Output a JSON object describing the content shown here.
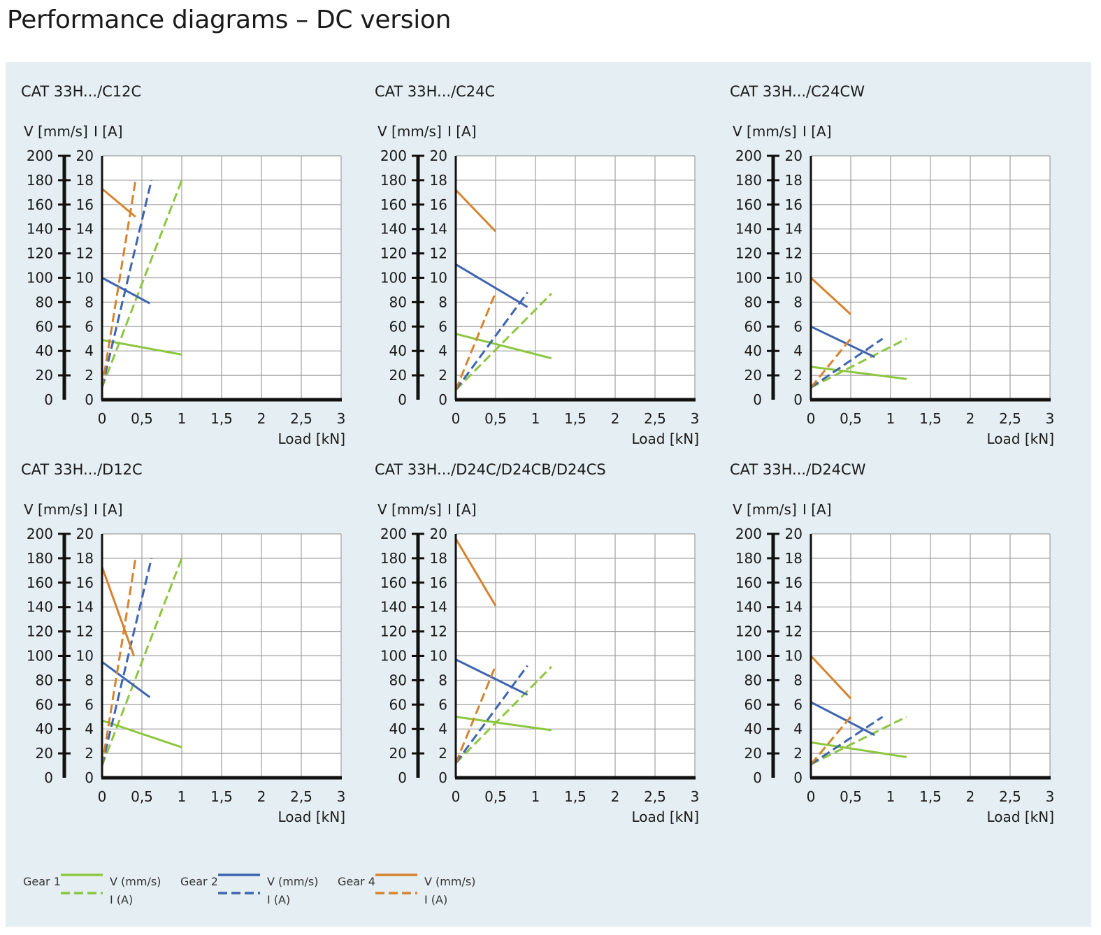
{
  "page": {
    "title": "Performance diagrams – DC version"
  },
  "colors": {
    "gear1": "#8cc63f",
    "gear2": "#3d64ae",
    "gear4": "#d6832e",
    "panel": "#e5eef2",
    "grid": "#a0a0a0",
    "axis": "#111111"
  },
  "legend": [
    {
      "gear": "Gear 1",
      "v_label": "V (mm/s)",
      "i_label": "I (A)",
      "color": "#8cc63f"
    },
    {
      "gear": "Gear 2",
      "v_label": "V (mm/s)",
      "i_label": "I (A)",
      "color": "#3d64ae"
    },
    {
      "gear": "Gear 4",
      "v_label": "V (mm/s)",
      "i_label": "I (A)",
      "color": "#d6832e"
    }
  ],
  "chart_data": [
    {
      "type": "line",
      "title": "CAT 33H.../C12C",
      "ylabel_left": "V [mm/s]",
      "ylabel_right": "I [A]",
      "xlabel": "Load [kN]",
      "xlim": [
        0,
        3
      ],
      "ylim_v": [
        0,
        200
      ],
      "ylim_i": [
        0,
        20
      ],
      "x_ticks": [
        "0",
        "0,5",
        "1",
        "1,5",
        "2",
        "2,5",
        "3"
      ],
      "y_ticks_v": [
        "0",
        "20",
        "40",
        "60",
        "80",
        "100",
        "120",
        "140",
        "160",
        "180",
        "200"
      ],
      "y_ticks_i": [
        "0",
        "2",
        "4",
        "6",
        "8",
        "10",
        "12",
        "14",
        "16",
        "18",
        "20"
      ],
      "grid": true,
      "series": [
        {
          "gear": "Gear 1",
          "quantity": "V",
          "style": "solid",
          "points": [
            [
              0,
              49
            ],
            [
              1.0,
              37
            ]
          ]
        },
        {
          "gear": "Gear 1",
          "quantity": "I",
          "style": "dashed",
          "points": [
            [
              0,
              1.0
            ],
            [
              1.0,
              18
            ]
          ]
        },
        {
          "gear": "Gear 2",
          "quantity": "V",
          "style": "solid",
          "points": [
            [
              0,
              100
            ],
            [
              0.6,
              79
            ]
          ]
        },
        {
          "gear": "Gear 2",
          "quantity": "I",
          "style": "dashed",
          "points": [
            [
              0,
              1.0
            ],
            [
              0.62,
              18
            ]
          ]
        },
        {
          "gear": "Gear 4",
          "quantity": "V",
          "style": "solid",
          "points": [
            [
              0,
              173
            ],
            [
              0.42,
              150
            ]
          ]
        },
        {
          "gear": "Gear 4",
          "quantity": "I",
          "style": "dashed",
          "points": [
            [
              0,
              1.0
            ],
            [
              0.42,
              18
            ]
          ]
        }
      ]
    },
    {
      "type": "line",
      "title": "CAT 33H.../C24C",
      "ylabel_left": "V [mm/s]",
      "ylabel_right": "I [A]",
      "xlabel": "Load [kN]",
      "xlim": [
        0,
        3
      ],
      "ylim_v": [
        0,
        200
      ],
      "ylim_i": [
        0,
        20
      ],
      "x_ticks": [
        "0",
        "0,5",
        "1",
        "1,5",
        "2",
        "2,5",
        "3"
      ],
      "y_ticks_v": [
        "0",
        "20",
        "40",
        "60",
        "80",
        "100",
        "120",
        "140",
        "160",
        "180",
        "200"
      ],
      "y_ticks_i": [
        "0",
        "2",
        "4",
        "6",
        "8",
        "10",
        "12",
        "14",
        "16",
        "18",
        "20"
      ],
      "grid": true,
      "series": [
        {
          "gear": "Gear 1",
          "quantity": "V",
          "style": "solid",
          "points": [
            [
              0,
              54
            ],
            [
              1.2,
              34
            ]
          ]
        },
        {
          "gear": "Gear 1",
          "quantity": "I",
          "style": "dashed",
          "points": [
            [
              0,
              0.8
            ],
            [
              1.2,
              8.7
            ]
          ]
        },
        {
          "gear": "Gear 2",
          "quantity": "V",
          "style": "solid",
          "points": [
            [
              0,
              111
            ],
            [
              0.9,
              76
            ]
          ]
        },
        {
          "gear": "Gear 2",
          "quantity": "I",
          "style": "dashed",
          "points": [
            [
              0,
              0.8
            ],
            [
              0.9,
              8.8
            ]
          ]
        },
        {
          "gear": "Gear 4",
          "quantity": "V",
          "style": "solid",
          "points": [
            [
              0,
              172
            ],
            [
              0.5,
              138
            ]
          ]
        },
        {
          "gear": "Gear 4",
          "quantity": "I",
          "style": "dashed",
          "points": [
            [
              0,
              0.8
            ],
            [
              0.5,
              8.8
            ]
          ]
        }
      ]
    },
    {
      "type": "line",
      "title": "CAT 33H.../C24CW",
      "ylabel_left": "V [mm/s]",
      "ylabel_right": "I [A]",
      "xlabel": "Load [kN]",
      "xlim": [
        0,
        3
      ],
      "ylim_v": [
        0,
        200
      ],
      "ylim_i": [
        0,
        20
      ],
      "x_ticks": [
        "0",
        "0,5",
        "1",
        "1,5",
        "2",
        "2,5",
        "3"
      ],
      "y_ticks_v": [
        "0",
        "20",
        "40",
        "60",
        "80",
        "100",
        "120",
        "140",
        "160",
        "180",
        "200"
      ],
      "y_ticks_i": [
        "0",
        "2",
        "4",
        "6",
        "8",
        "10",
        "12",
        "14",
        "16",
        "18",
        "20"
      ],
      "grid": true,
      "series": [
        {
          "gear": "Gear 1",
          "quantity": "V",
          "style": "solid",
          "points": [
            [
              0,
              27
            ],
            [
              1.2,
              17
            ]
          ]
        },
        {
          "gear": "Gear 1",
          "quantity": "I",
          "style": "dashed",
          "points": [
            [
              0,
              1.0
            ],
            [
              1.2,
              5.0
            ]
          ]
        },
        {
          "gear": "Gear 2",
          "quantity": "V",
          "style": "solid",
          "points": [
            [
              0,
              60
            ],
            [
              0.8,
              35
            ]
          ]
        },
        {
          "gear": "Gear 2",
          "quantity": "I",
          "style": "dashed",
          "points": [
            [
              0,
              1.0
            ],
            [
              0.9,
              5.0
            ]
          ]
        },
        {
          "gear": "Gear 4",
          "quantity": "V",
          "style": "solid",
          "points": [
            [
              0,
              100
            ],
            [
              0.5,
              70
            ]
          ]
        },
        {
          "gear": "Gear 4",
          "quantity": "I",
          "style": "dashed",
          "points": [
            [
              0,
              1.0
            ],
            [
              0.5,
              5.0
            ]
          ]
        }
      ]
    },
    {
      "type": "line",
      "title": "CAT 33H.../D12C",
      "ylabel_left": "V [mm/s]",
      "ylabel_right": "I [A]",
      "xlabel": "Load [kN]",
      "xlim": [
        0,
        3
      ],
      "ylim_v": [
        0,
        200
      ],
      "ylim_i": [
        0,
        20
      ],
      "x_ticks": [
        "0",
        "0,5",
        "1",
        "1,5",
        "2",
        "2,5",
        "3"
      ],
      "y_ticks_v": [
        "0",
        "20",
        "40",
        "60",
        "80",
        "100",
        "120",
        "140",
        "160",
        "180",
        "200"
      ],
      "y_ticks_i": [
        "0",
        "2",
        "4",
        "6",
        "8",
        "10",
        "12",
        "14",
        "16",
        "18",
        "20"
      ],
      "grid": true,
      "series": [
        {
          "gear": "Gear 1",
          "quantity": "V",
          "style": "solid",
          "points": [
            [
              0,
              47
            ],
            [
              1.0,
              25
            ]
          ]
        },
        {
          "gear": "Gear 1",
          "quantity": "I",
          "style": "dashed",
          "points": [
            [
              0,
              1.0
            ],
            [
              1.0,
              18
            ]
          ]
        },
        {
          "gear": "Gear 2",
          "quantity": "V",
          "style": "solid",
          "points": [
            [
              0,
              95
            ],
            [
              0.6,
              66
            ]
          ]
        },
        {
          "gear": "Gear 2",
          "quantity": "I",
          "style": "dashed",
          "points": [
            [
              0,
              1.0
            ],
            [
              0.62,
              18
            ]
          ]
        },
        {
          "gear": "Gear 4",
          "quantity": "V",
          "style": "solid",
          "points": [
            [
              0,
              173
            ],
            [
              0.4,
              100
            ]
          ]
        },
        {
          "gear": "Gear 4",
          "quantity": "I",
          "style": "dashed",
          "points": [
            [
              0,
              1.0
            ],
            [
              0.42,
              18
            ]
          ]
        }
      ]
    },
    {
      "type": "line",
      "title": "CAT 33H.../D24C/D24CB/D24CS",
      "ylabel_left": "V [mm/s]",
      "ylabel_right": "I [A]",
      "xlabel": "Load [kN]",
      "xlim": [
        0,
        3
      ],
      "ylim_v": [
        0,
        200
      ],
      "ylim_i": [
        0,
        20
      ],
      "x_ticks": [
        "0",
        "0,5",
        "1",
        "1,5",
        "2",
        "2,5",
        "3"
      ],
      "y_ticks_v": [
        "0",
        "20",
        "40",
        "60",
        "80",
        "100",
        "120",
        "140",
        "160",
        "180",
        "200"
      ],
      "y_ticks_i": [
        "0",
        "2",
        "4",
        "6",
        "8",
        "10",
        "12",
        "14",
        "16",
        "18",
        "20"
      ],
      "grid": true,
      "series": [
        {
          "gear": "Gear 1",
          "quantity": "V",
          "style": "solid",
          "points": [
            [
              0,
              50
            ],
            [
              1.2,
              39
            ]
          ]
        },
        {
          "gear": "Gear 1",
          "quantity": "I",
          "style": "dashed",
          "points": [
            [
              0,
              1.2
            ],
            [
              1.2,
              9.1
            ]
          ]
        },
        {
          "gear": "Gear 2",
          "quantity": "V",
          "style": "solid",
          "points": [
            [
              0,
              97
            ],
            [
              0.9,
              68
            ]
          ]
        },
        {
          "gear": "Gear 2",
          "quantity": "I",
          "style": "dashed",
          "points": [
            [
              0,
              1.2
            ],
            [
              0.9,
              9.2
            ]
          ]
        },
        {
          "gear": "Gear 4",
          "quantity": "V",
          "style": "solid",
          "points": [
            [
              0,
              196
            ],
            [
              0.5,
              141
            ]
          ]
        },
        {
          "gear": "Gear 4",
          "quantity": "I",
          "style": "dashed",
          "points": [
            [
              0,
              1.2
            ],
            [
              0.5,
              9.2
            ]
          ]
        }
      ]
    },
    {
      "type": "line",
      "title": "CAT 33H.../D24CW",
      "ylabel_left": "V [mm/s]",
      "ylabel_right": "I [A]",
      "xlabel": "Load [kN]",
      "xlim": [
        0,
        3
      ],
      "ylim_v": [
        0,
        200
      ],
      "ylim_i": [
        0,
        20
      ],
      "x_ticks": [
        "0",
        "0,5",
        "1",
        "1,5",
        "2",
        "2,5",
        "3"
      ],
      "y_ticks_v": [
        "0",
        "20",
        "40",
        "60",
        "80",
        "100",
        "120",
        "140",
        "160",
        "180",
        "200"
      ],
      "y_ticks_i": [
        "0",
        "2",
        "4",
        "6",
        "8",
        "10",
        "12",
        "14",
        "16",
        "18",
        "20"
      ],
      "grid": true,
      "series": [
        {
          "gear": "Gear 1",
          "quantity": "V",
          "style": "solid",
          "points": [
            [
              0,
              29
            ],
            [
              1.2,
              17
            ]
          ]
        },
        {
          "gear": "Gear 1",
          "quantity": "I",
          "style": "dashed",
          "points": [
            [
              0,
              1.1
            ],
            [
              1.2,
              5.0
            ]
          ]
        },
        {
          "gear": "Gear 2",
          "quantity": "V",
          "style": "solid",
          "points": [
            [
              0,
              62
            ],
            [
              0.8,
              35
            ]
          ]
        },
        {
          "gear": "Gear 2",
          "quantity": "I",
          "style": "dashed",
          "points": [
            [
              0,
              1.1
            ],
            [
              0.9,
              5.0
            ]
          ]
        },
        {
          "gear": "Gear 4",
          "quantity": "V",
          "style": "solid",
          "points": [
            [
              0,
              100
            ],
            [
              0.5,
              65
            ]
          ]
        },
        {
          "gear": "Gear 4",
          "quantity": "I",
          "style": "dashed",
          "points": [
            [
              0,
              1.1
            ],
            [
              0.5,
              5.0
            ]
          ]
        }
      ]
    }
  ]
}
